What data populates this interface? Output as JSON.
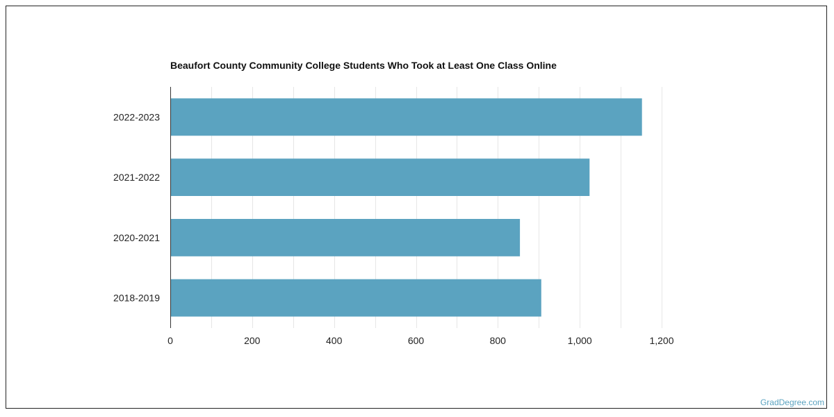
{
  "chart_data": {
    "type": "bar",
    "orientation": "horizontal",
    "title": "Beaufort County Community College Students Who Took at Least One Class Online",
    "categories": [
      "2022-2023",
      "2021-2022",
      "2020-2021",
      "2018-2019"
    ],
    "values": [
      1152,
      1024,
      854,
      906
    ],
    "xlim": [
      0,
      1200
    ],
    "xticks": [
      0,
      200,
      400,
      600,
      800,
      1000,
      1200
    ],
    "xtick_labels": [
      "0",
      "200",
      "400",
      "600",
      "800",
      "1,000",
      "1,200"
    ],
    "xlabel": "",
    "ylabel": "",
    "grid": true,
    "bar_color": "#5ba3c0"
  },
  "watermark": "GradDegree.com"
}
